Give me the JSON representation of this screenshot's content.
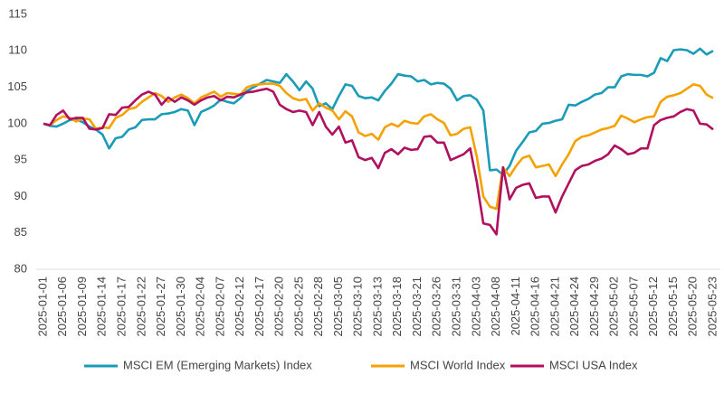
{
  "chart_data": {
    "type": "line",
    "categories": [
      "2025-01-01",
      null,
      null,
      "2025-01-06",
      null,
      null,
      "2025-01-09",
      null,
      null,
      "2025-01-14",
      null,
      null,
      "2025-01-17",
      null,
      null,
      "2025-01-22",
      null,
      null,
      "2025-01-27",
      null,
      null,
      "2025-01-30",
      null,
      null,
      "2025-02-04",
      null,
      null,
      "2025-02-07",
      null,
      null,
      "2025-02-12",
      null,
      null,
      "2025-02-17",
      null,
      null,
      "2025-02-20",
      null,
      null,
      "2025-02-25",
      null,
      null,
      "2025-02-28",
      null,
      null,
      "2025-03-05",
      null,
      null,
      "2025-03-10",
      null,
      null,
      "2025-03-13",
      null,
      null,
      "2025-03-18",
      null,
      null,
      "2025-03-21",
      null,
      null,
      "2025-03-26",
      null,
      null,
      "2025-03-31",
      null,
      null,
      "2025-04-03",
      null,
      null,
      "2025-04-08",
      null,
      null,
      "2025-04-11",
      null,
      null,
      "2025-04-16",
      null,
      null,
      "2025-04-21",
      null,
      null,
      "2025-04-24",
      null,
      null,
      "2025-04-29",
      null,
      null,
      "2025-05-02",
      null,
      null,
      "2025-05-07",
      null,
      null,
      "2025-05-12",
      null,
      null,
      "2025-05-15",
      null,
      null,
      "2025-05-20",
      null,
      null,
      "2025-05-23"
    ],
    "series": [
      {
        "name": "MSCI EM (Emerging Markets) Index",
        "color": "#1a9bb8",
        "values": [
          100,
          99.7,
          99.6,
          100,
          100.5,
          100.6,
          100.2,
          99.6,
          99.2,
          98.5,
          96.6,
          98,
          98.2,
          99.2,
          99.5,
          100.5,
          100.6,
          100.6,
          101.3,
          101.4,
          101.6,
          102,
          101.8,
          99.8,
          101.6,
          102,
          102.5,
          103.3,
          103,
          102.8,
          103.5,
          104.5,
          105,
          105.5,
          106,
          105.8,
          105.6,
          106.8,
          105.8,
          104.6,
          105.8,
          104.8,
          102.4,
          102.8,
          102,
          103.8,
          105.4,
          105.2,
          103.8,
          103.5,
          103.6,
          103.2,
          104.5,
          105.5,
          106.8,
          106.6,
          106.5,
          105.8,
          106,
          105.4,
          105.6,
          105.5,
          104.8,
          103.2,
          103.8,
          103.9,
          103.3,
          101.8,
          93.6,
          93.7,
          93,
          94.2,
          96.3,
          97.5,
          98.8,
          99,
          100,
          100.1,
          100.4,
          100.6,
          102.6,
          102.5,
          103,
          103.4,
          104,
          104.2,
          105,
          105,
          106.5,
          106.8,
          106.7,
          106.7,
          106.5,
          107,
          109,
          108.6,
          110.1,
          110.2,
          110.1,
          109.6,
          110.3,
          109.5,
          110
        ]
      },
      {
        "name": "MSCI World Index",
        "color": "#f5a100",
        "values": [
          100,
          99.8,
          100.5,
          101,
          100.8,
          100.3,
          100.7,
          100.6,
          99.3,
          99.5,
          99.4,
          100.8,
          101.2,
          102,
          102.2,
          103,
          103.6,
          104.2,
          103.8,
          103,
          103.6,
          104,
          103.5,
          102.8,
          103.6,
          104,
          104.4,
          103.7,
          104.2,
          104.1,
          104,
          105,
          105.3,
          105.4,
          105.5,
          105.5,
          105.2,
          104.2,
          103.5,
          103.2,
          103.4,
          101.8,
          102.8,
          102.2,
          101.8,
          100.6,
          101.7,
          101,
          98.8,
          98.3,
          98.6,
          97.8,
          99.5,
          100,
          99.6,
          100.4,
          100.1,
          100,
          101,
          101.3,
          100.6,
          100.1,
          98.4,
          98.6,
          99.3,
          99.5,
          95.5,
          90,
          88.6,
          88.3,
          94,
          92.8,
          94.2,
          95.3,
          95.6,
          94,
          94.2,
          94.4,
          92.8,
          94.4,
          95.8,
          97.6,
          98.2,
          98.4,
          98.8,
          99.2,
          99.4,
          99.7,
          101.1,
          100.7,
          100.2,
          100.6,
          100.9,
          101,
          103,
          103.7,
          103.9,
          104.2,
          104.8,
          105.4,
          105.2,
          104,
          103.5
        ]
      },
      {
        "name": "MSCI USA Index",
        "color": "#b0105e",
        "values": [
          100,
          99.8,
          101.2,
          101.8,
          100.6,
          100.8,
          100.8,
          99.3,
          99.2,
          99.4,
          101.3,
          101.2,
          102.2,
          102.3,
          103.2,
          104,
          104.4,
          104,
          102.6,
          103.6,
          103,
          103.6,
          103.2,
          102.6,
          103.2,
          103.6,
          103.8,
          103.2,
          103.7,
          103.6,
          104,
          104.3,
          104.4,
          104.6,
          104.8,
          104.4,
          102.6,
          102,
          101.6,
          101.8,
          101.6,
          99.8,
          101.6,
          99.6,
          98.5,
          99.6,
          97.4,
          97.7,
          95.4,
          95,
          95.3,
          93.9,
          96,
          96.5,
          95.8,
          96.7,
          96.4,
          96.5,
          98.2,
          98.3,
          97.4,
          97.4,
          95,
          95.4,
          95.8,
          96.6,
          92,
          86.3,
          86.1,
          84.8,
          94,
          89.6,
          91.2,
          91.6,
          91.8,
          89.8,
          90,
          90,
          87.8,
          90,
          91.8,
          93.6,
          94.2,
          94.4,
          94.9,
          95.2,
          95.8,
          97,
          96.5,
          95.8,
          96,
          96.6,
          96.6,
          99.8,
          100.5,
          100.8,
          101,
          101.6,
          102,
          101.8,
          100,
          99.9,
          99.2
        ]
      }
    ],
    "ylim": [
      80,
      115
    ],
    "yticks": [
      80,
      85,
      90,
      95,
      100,
      105,
      110,
      115
    ],
    "grid": false,
    "legend": "bottom"
  }
}
